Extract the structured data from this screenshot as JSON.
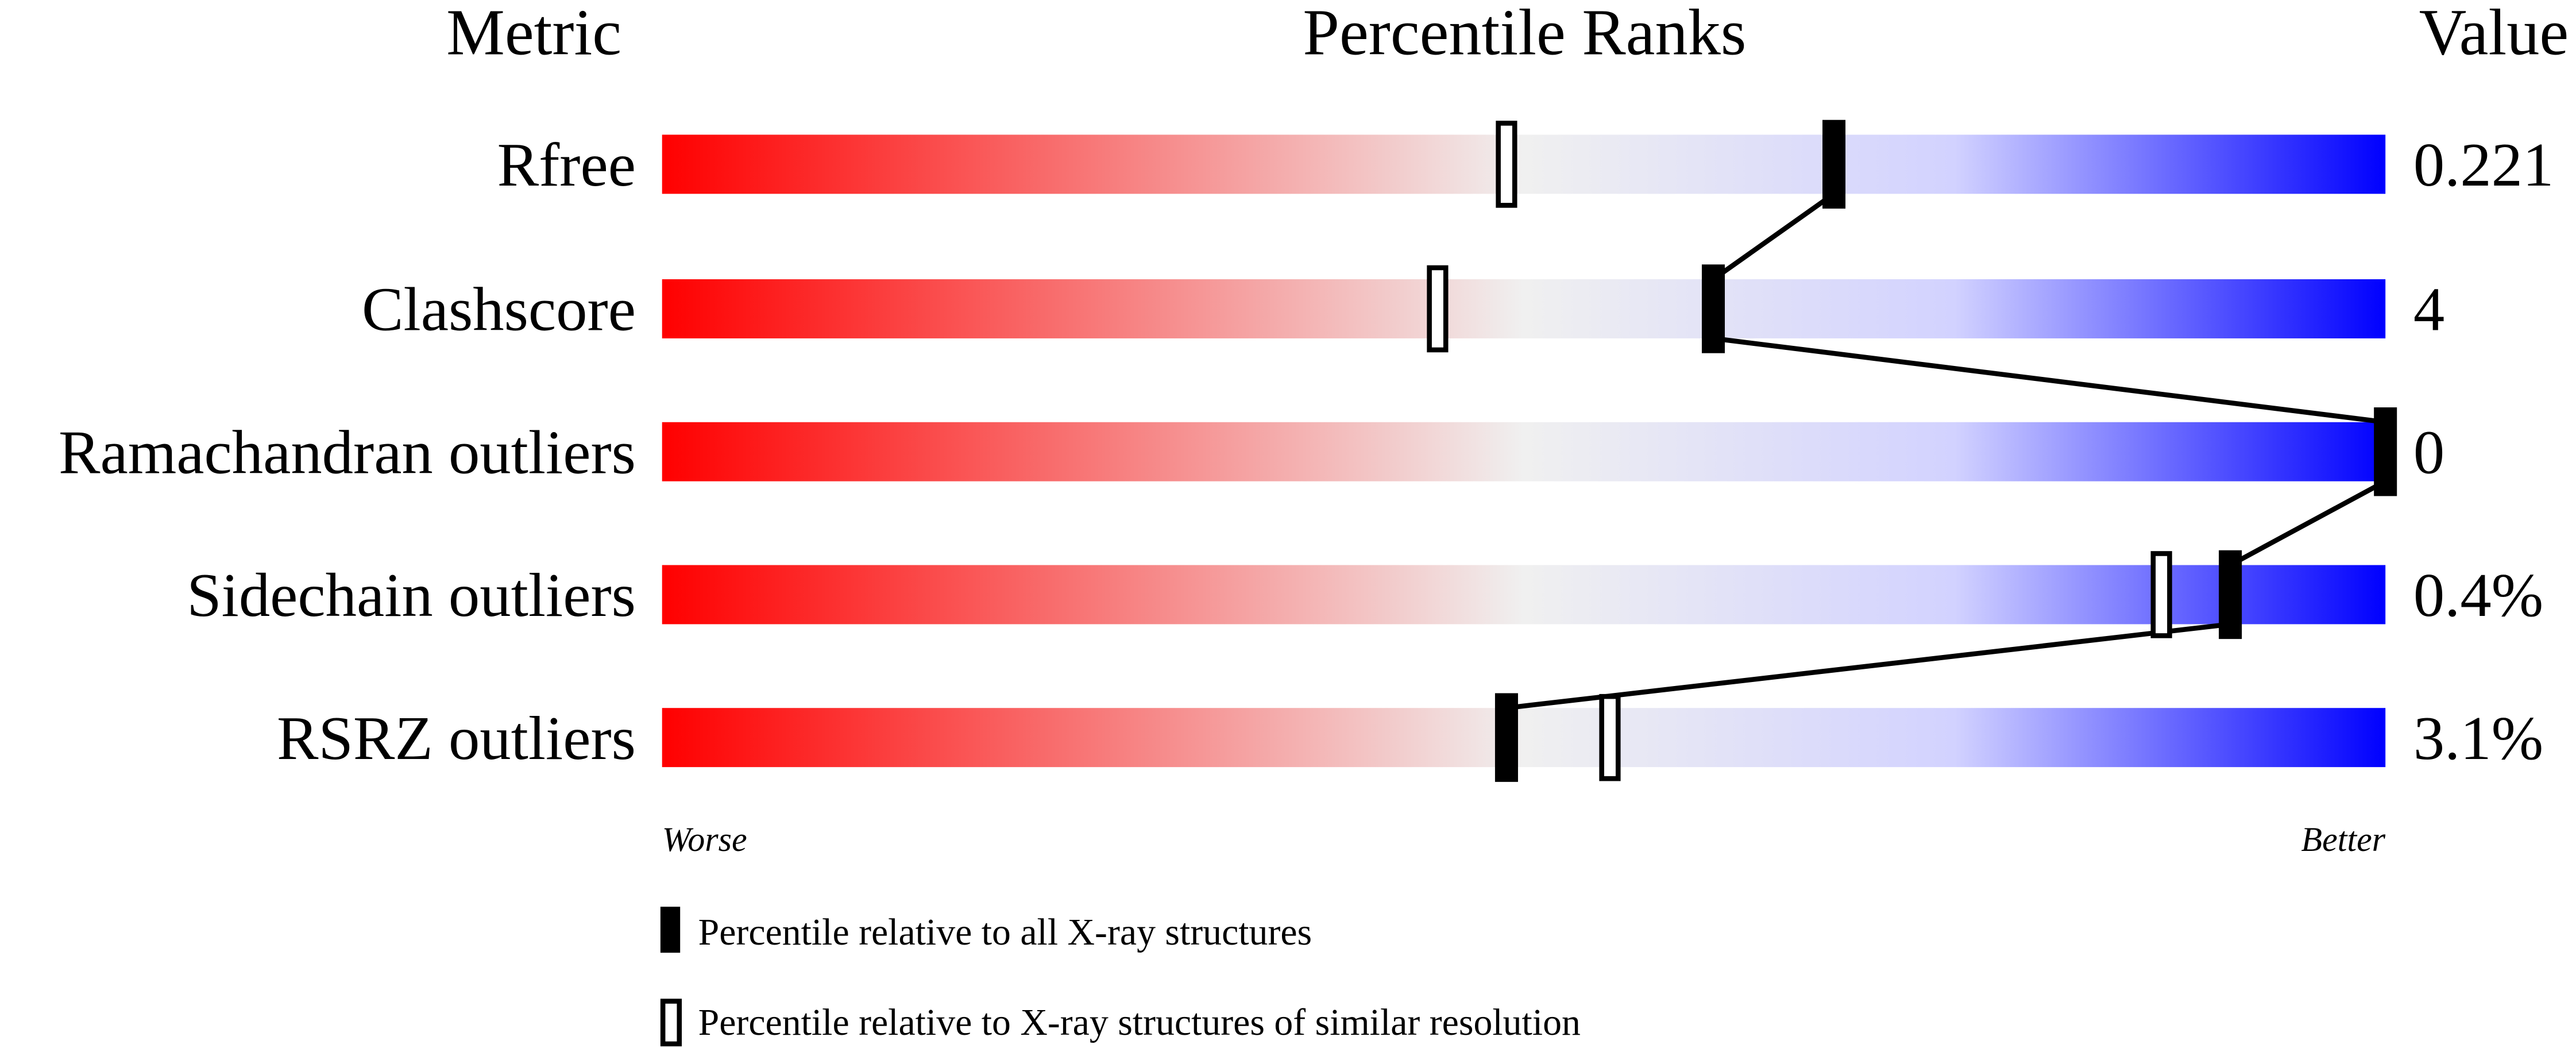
{
  "chart_data": {
    "type": "percentile-slider",
    "headers": {
      "metric": "Metric",
      "ranks": "Percentile Ranks",
      "value": "Value"
    },
    "xlim": [
      0,
      100
    ],
    "metrics": [
      {
        "name": "Rfree",
        "value": "0.221",
        "percentile_all": 68,
        "percentile_similar": 49
      },
      {
        "name": "Clashscore",
        "value": "4",
        "percentile_all": 61,
        "percentile_similar": 45
      },
      {
        "name": "Ramachandran outliers",
        "value": "0",
        "percentile_all": 100,
        "percentile_similar": 100
      },
      {
        "name": "Sidechain outliers",
        "value": "0.4%",
        "percentile_all": 91,
        "percentile_similar": 87
      },
      {
        "name": "RSRZ outliers",
        "value": "3.1%",
        "percentile_all": 49,
        "percentile_similar": 55
      }
    ],
    "axis_labels": {
      "left": "Worse",
      "right": "Better"
    },
    "legend": [
      {
        "marker": "filled",
        "label": "Percentile relative to all X-ray structures"
      },
      {
        "marker": "open",
        "label": "Percentile relative to X-ray structures of similar resolution"
      }
    ],
    "colors": {
      "worse": "#ff0000",
      "middle": "#f0f0f0",
      "light_blue": "#d2d2ff",
      "better": "#0000ff"
    }
  }
}
